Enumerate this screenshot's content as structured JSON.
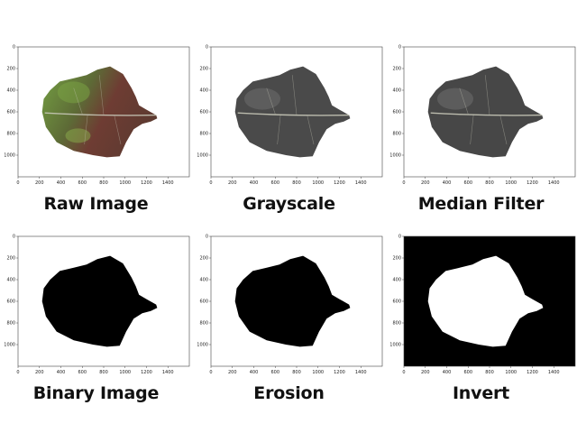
{
  "panels": [
    {
      "id": "raw",
      "caption": "Raw Image",
      "style": "raw",
      "background": "#ffffff"
    },
    {
      "id": "gray",
      "caption": "Grayscale",
      "style": "gray",
      "background": "#ffffff"
    },
    {
      "id": "median",
      "caption": "Median Filter",
      "style": "median",
      "background": "#ffffff"
    },
    {
      "id": "binary",
      "caption": "Binary Image",
      "style": "binary",
      "background": "#ffffff"
    },
    {
      "id": "erosion",
      "caption": "Erosion",
      "style": "erosion",
      "background": "#ffffff"
    },
    {
      "id": "invert",
      "caption": "Invert",
      "style": "invert",
      "background": "#000000"
    }
  ],
  "axes": {
    "x_ticks": [
      "0",
      "200",
      "400",
      "600",
      "800",
      "1000",
      "1200",
      "1400"
    ],
    "y_ticks": [
      "0",
      "200",
      "400",
      "600",
      "800",
      "1000"
    ]
  },
  "colors": {
    "leaf_green": "#6f9440",
    "leaf_brown": "#6e3c33",
    "leaf_gray": "#4a4a4a",
    "vein": "#c8c8b8",
    "mask": "#000000",
    "mask_inverted": "#ffffff"
  }
}
